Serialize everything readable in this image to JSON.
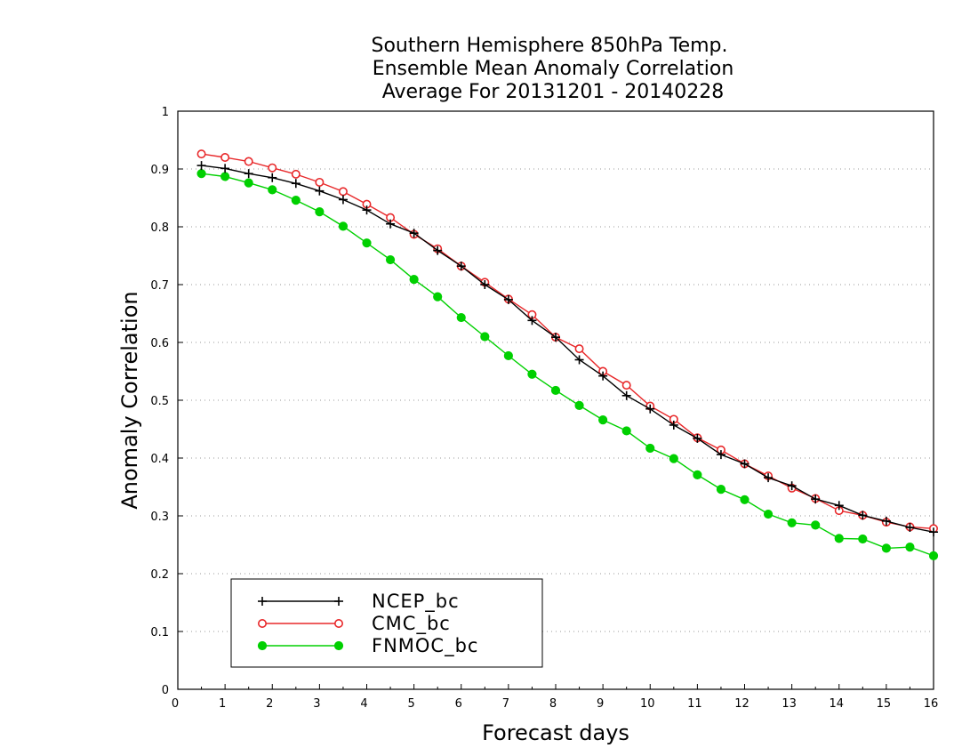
{
  "chart_data": {
    "type": "line",
    "title_lines": [
      "Southern Hemisphere 850hPa Temp.",
      "Ensemble Mean Anomaly Correlation",
      "Average For 20131201 - 20140228"
    ],
    "xlabel": "Forecast days",
    "ylabel": "Anomaly Correlation",
    "xlim": [
      0,
      16
    ],
    "ylim": [
      0,
      1
    ],
    "x_ticks": [
      "0",
      "1",
      "2",
      "3",
      "4",
      "5",
      "6",
      "7",
      "8",
      "9",
      "10",
      "11",
      "12",
      "13",
      "14",
      "15",
      "16"
    ],
    "y_ticks": [
      "0",
      "0.1",
      "0.2",
      "0.3",
      "0.4",
      "0.5",
      "0.6",
      "0.7",
      "0.8",
      "0.9",
      "1"
    ],
    "grid": "horizontal dotted",
    "legend_position": "bottom-left",
    "x": [
      0.5,
      1,
      1.5,
      2,
      2.5,
      3,
      3.5,
      4,
      4.5,
      5,
      5.5,
      6,
      6.5,
      7,
      7.5,
      8,
      8.5,
      9,
      9.5,
      10,
      10.5,
      11,
      11.5,
      12,
      12.5,
      13,
      13.5,
      14,
      14.5,
      15,
      15.5,
      16
    ],
    "series": [
      {
        "name": "NCEP_bc",
        "color": "#000000",
        "marker": "plus",
        "values": [
          0.906,
          0.901,
          0.892,
          0.885,
          0.875,
          0.862,
          0.847,
          0.829,
          0.805,
          0.789,
          0.759,
          0.732,
          0.7,
          0.674,
          0.638,
          0.609,
          0.57,
          0.542,
          0.508,
          0.485,
          0.457,
          0.434,
          0.406,
          0.39,
          0.366,
          0.352,
          0.329,
          0.318,
          0.301,
          0.291,
          0.28,
          0.272
        ]
      },
      {
        "name": "CMC_bc",
        "color": "#e8282a",
        "marker": "open-circle",
        "values": [
          0.926,
          0.92,
          0.913,
          0.902,
          0.891,
          0.877,
          0.861,
          0.839,
          0.816,
          0.787,
          0.762,
          0.732,
          0.704,
          0.675,
          0.648,
          0.609,
          0.589,
          0.55,
          0.526,
          0.49,
          0.467,
          0.435,
          0.414,
          0.39,
          0.369,
          0.348,
          0.33,
          0.309,
          0.301,
          0.289,
          0.281,
          0.278
        ]
      },
      {
        "name": "FNMOC_bc",
        "color": "#00d000",
        "marker": "filled-circle",
        "values": [
          0.892,
          0.887,
          0.876,
          0.864,
          0.846,
          0.826,
          0.801,
          0.772,
          0.743,
          0.709,
          0.679,
          0.643,
          0.61,
          0.577,
          0.545,
          0.517,
          0.491,
          0.466,
          0.447,
          0.417,
          0.399,
          0.371,
          0.346,
          0.328,
          0.303,
          0.288,
          0.284,
          0.261,
          0.26,
          0.244,
          0.246,
          0.231
        ]
      }
    ]
  }
}
